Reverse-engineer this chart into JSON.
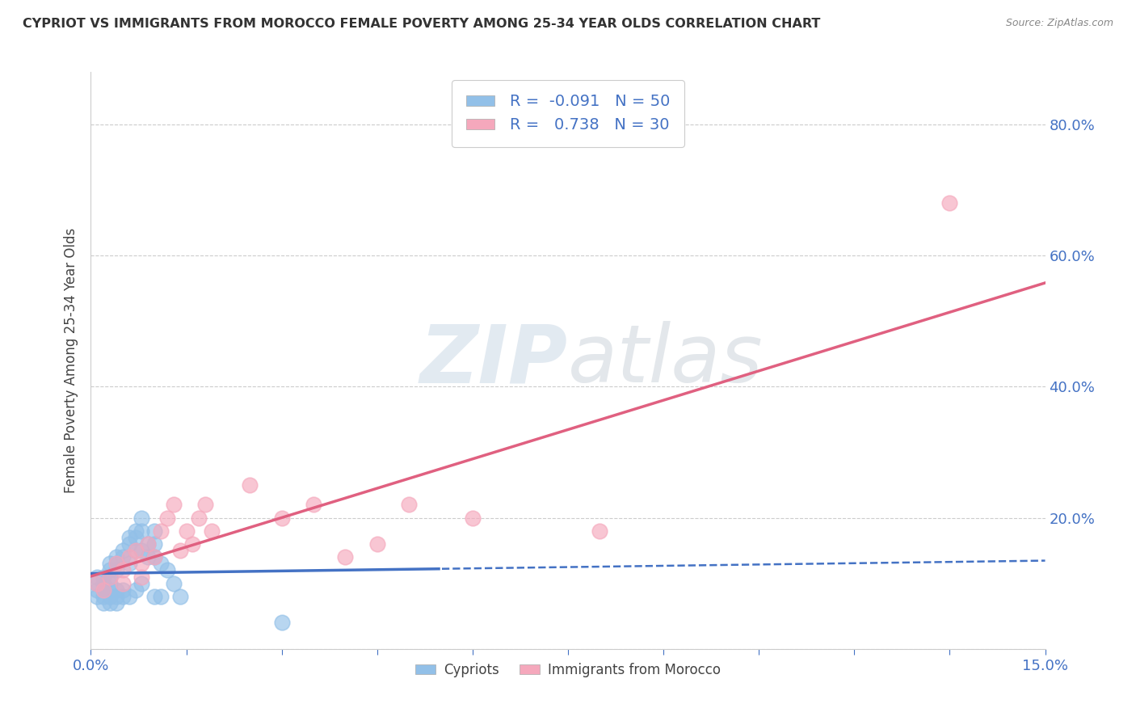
{
  "title": "CYPRIOT VS IMMIGRANTS FROM MOROCCO FEMALE POVERTY AMONG 25-34 YEAR OLDS CORRELATION CHART",
  "source": "Source: ZipAtlas.com",
  "ylabel": "Female Poverty Among 25-34 Year Olds",
  "xlim": [
    0.0,
    0.15
  ],
  "ylim": [
    0.0,
    0.88
  ],
  "xtick_positions": [
    0.0,
    0.015,
    0.03,
    0.045,
    0.06,
    0.075,
    0.09,
    0.105,
    0.12,
    0.135,
    0.15
  ],
  "xtick_labels": [
    "0.0%",
    "",
    "",
    "",
    "",
    "",
    "",
    "",
    "",
    "",
    "15.0%"
  ],
  "ytick_positions": [
    0.0,
    0.2,
    0.4,
    0.6,
    0.8
  ],
  "ytick_labels": [
    "",
    "20.0%",
    "40.0%",
    "60.0%",
    "80.0%"
  ],
  "cypriot_color": "#92C0E8",
  "morocco_color": "#F5A8BC",
  "cypriot_R": -0.091,
  "cypriot_N": 50,
  "morocco_R": 0.738,
  "morocco_N": 30,
  "legend_label_cypriot": "Cypriots",
  "legend_label_morocco": "Immigrants from Morocco",
  "watermark_zip": "ZIP",
  "watermark_atlas": "atlas",
  "background_color": "#FFFFFF",
  "blue_line_color": "#4472C4",
  "pink_line_color": "#E06080",
  "tick_color": "#4472C4",
  "cypriot_scatter_x": [
    0.001,
    0.001,
    0.001,
    0.001,
    0.002,
    0.002,
    0.002,
    0.002,
    0.002,
    0.003,
    0.003,
    0.003,
    0.003,
    0.003,
    0.003,
    0.003,
    0.004,
    0.004,
    0.004,
    0.004,
    0.004,
    0.004,
    0.005,
    0.005,
    0.005,
    0.005,
    0.006,
    0.006,
    0.006,
    0.006,
    0.007,
    0.007,
    0.007,
    0.007,
    0.008,
    0.008,
    0.008,
    0.008,
    0.009,
    0.009,
    0.01,
    0.01,
    0.01,
    0.01,
    0.011,
    0.011,
    0.012,
    0.013,
    0.014,
    0.03
  ],
  "cypriot_scatter_y": [
    0.09,
    0.1,
    0.11,
    0.08,
    0.1,
    0.09,
    0.11,
    0.08,
    0.07,
    0.12,
    0.1,
    0.09,
    0.11,
    0.08,
    0.07,
    0.13,
    0.14,
    0.13,
    0.12,
    0.09,
    0.08,
    0.07,
    0.15,
    0.14,
    0.09,
    0.08,
    0.17,
    0.16,
    0.13,
    0.08,
    0.18,
    0.17,
    0.15,
    0.09,
    0.2,
    0.18,
    0.15,
    0.1,
    0.16,
    0.14,
    0.18,
    0.16,
    0.14,
    0.08,
    0.13,
    0.08,
    0.12,
    0.1,
    0.08,
    0.04
  ],
  "morocco_scatter_x": [
    0.001,
    0.002,
    0.003,
    0.004,
    0.005,
    0.005,
    0.006,
    0.007,
    0.008,
    0.008,
    0.009,
    0.01,
    0.011,
    0.012,
    0.013,
    0.014,
    0.015,
    0.016,
    0.017,
    0.018,
    0.019,
    0.025,
    0.03,
    0.035,
    0.04,
    0.045,
    0.05,
    0.06,
    0.08,
    0.135
  ],
  "morocco_scatter_y": [
    0.1,
    0.09,
    0.11,
    0.13,
    0.12,
    0.1,
    0.14,
    0.15,
    0.13,
    0.11,
    0.16,
    0.14,
    0.18,
    0.2,
    0.22,
    0.15,
    0.18,
    0.16,
    0.2,
    0.22,
    0.18,
    0.25,
    0.2,
    0.22,
    0.14,
    0.16,
    0.22,
    0.2,
    0.18,
    0.68
  ],
  "cypriot_trendline_x0": 0.0,
  "cypriot_trendline_x_solid_end": 0.055,
  "morocco_trendline_x0": 0.0,
  "morocco_trendline_x1": 0.15
}
